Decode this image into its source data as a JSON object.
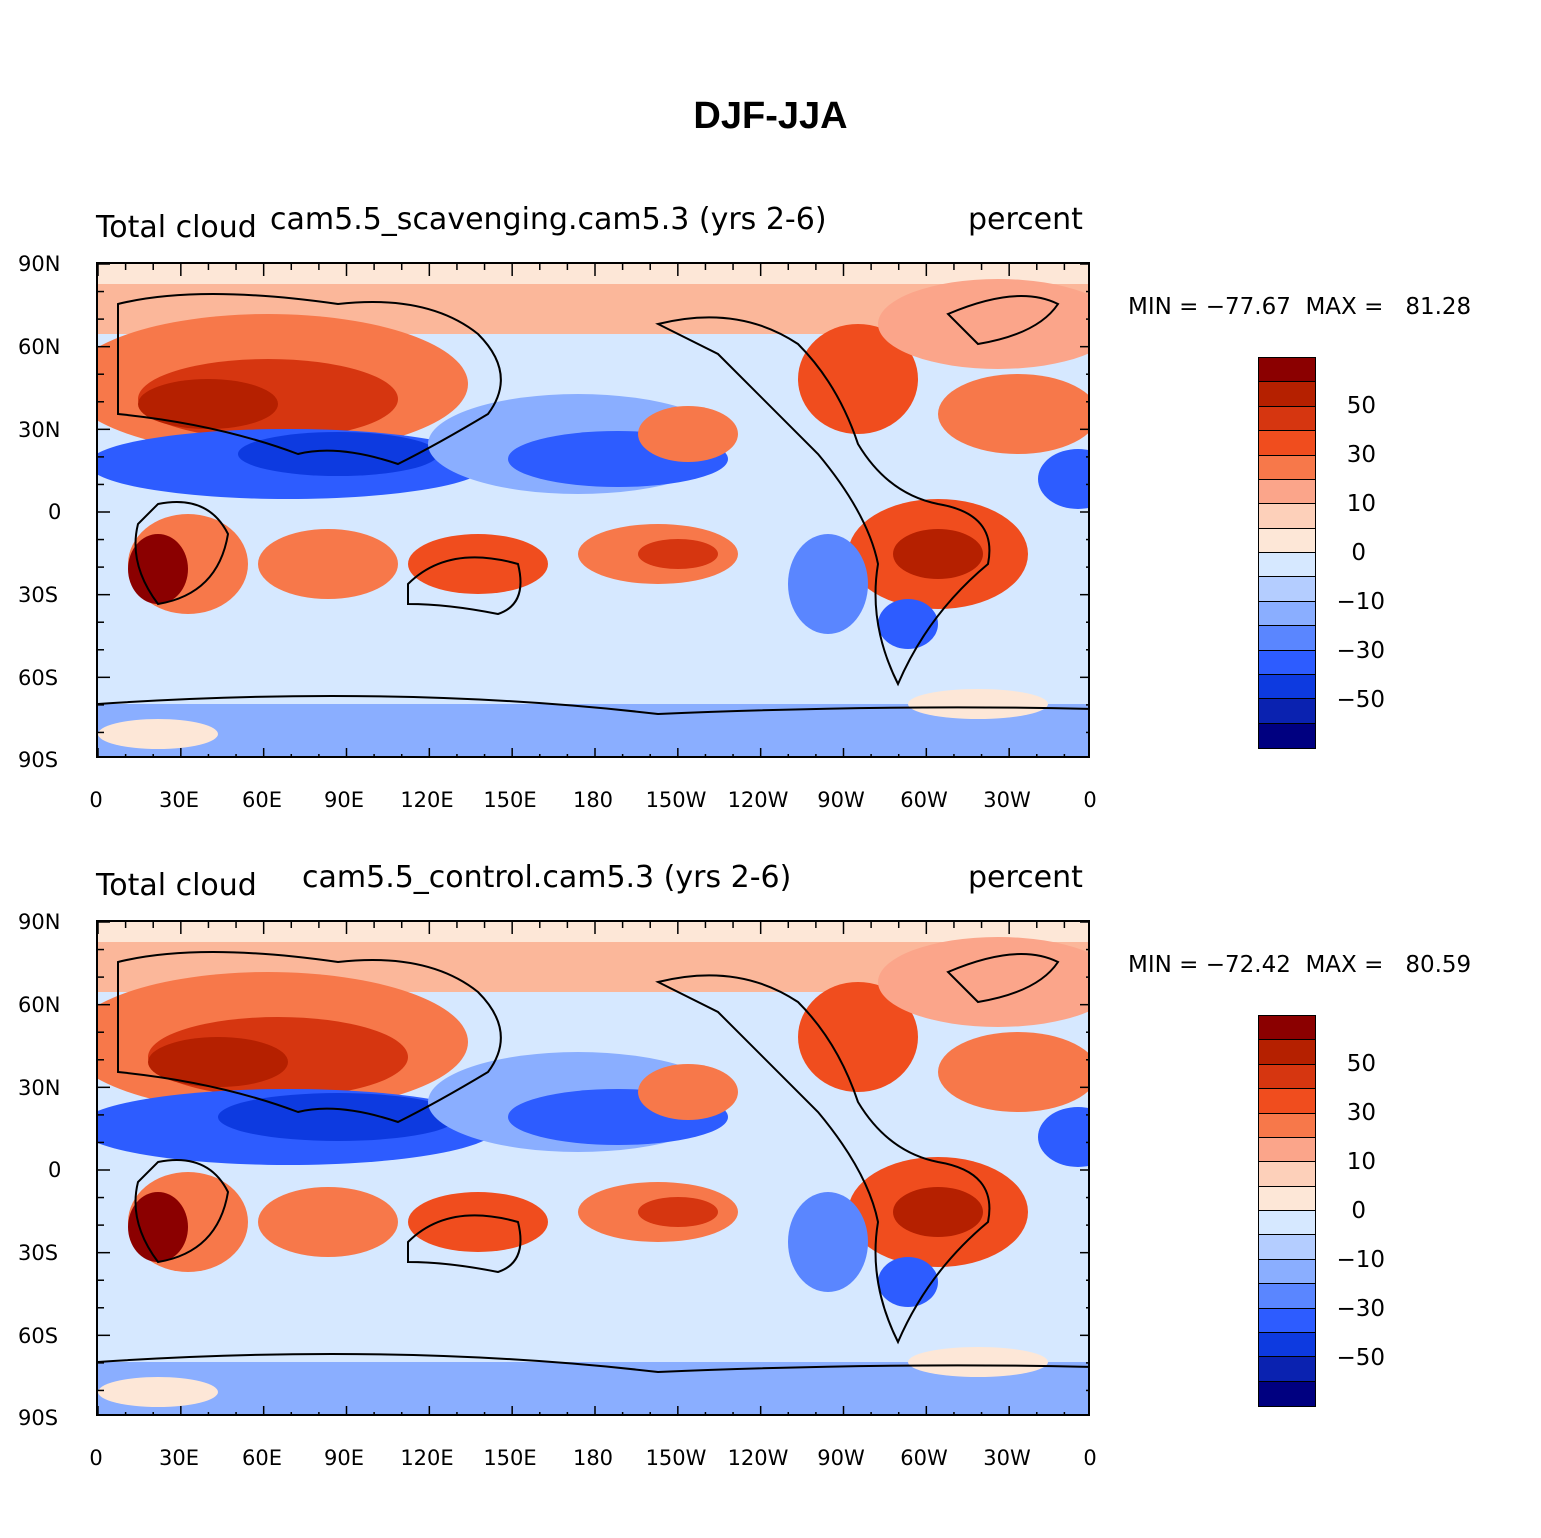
{
  "figure": {
    "title": "DJF-JJA"
  },
  "panels": [
    {
      "left_label": "Total cloud",
      "center_label": "cam5.5_scavenging.cam5.3 (yrs 2-6)",
      "right_label": "percent",
      "minmax": "MIN = −77.67  MAX =   81.28"
    },
    {
      "left_label": "Total cloud",
      "center_label": "cam5.5_control.cam5.3 (yrs 2-6)",
      "right_label": "percent",
      "minmax": "MIN = −72.42  MAX =   80.59"
    }
  ],
  "axes": {
    "y_ticks": [
      "90N",
      "60N",
      "30N",
      "0",
      "30S",
      "60S",
      "90S"
    ],
    "x_ticks": [
      "0",
      "30E",
      "60E",
      "90E",
      "120E",
      "150E",
      "180",
      "150W",
      "120W",
      "90W",
      "60W",
      "30W",
      "0"
    ]
  },
  "colorbar": {
    "labels": [
      "50",
      "30",
      "10",
      "0",
      "−10",
      "−30",
      "−50"
    ],
    "colors": [
      "#8b0000",
      "#b52000",
      "#d63610",
      "#f04d1e",
      "#f7784a",
      "#fba58a",
      "#fdd0ba",
      "#fde7d7",
      "#d6e8ff",
      "#b4cdff",
      "#8aaeff",
      "#5a86ff",
      "#2d5cff",
      "#0d3ae0",
      "#0a22b0",
      "#000080"
    ]
  }
}
